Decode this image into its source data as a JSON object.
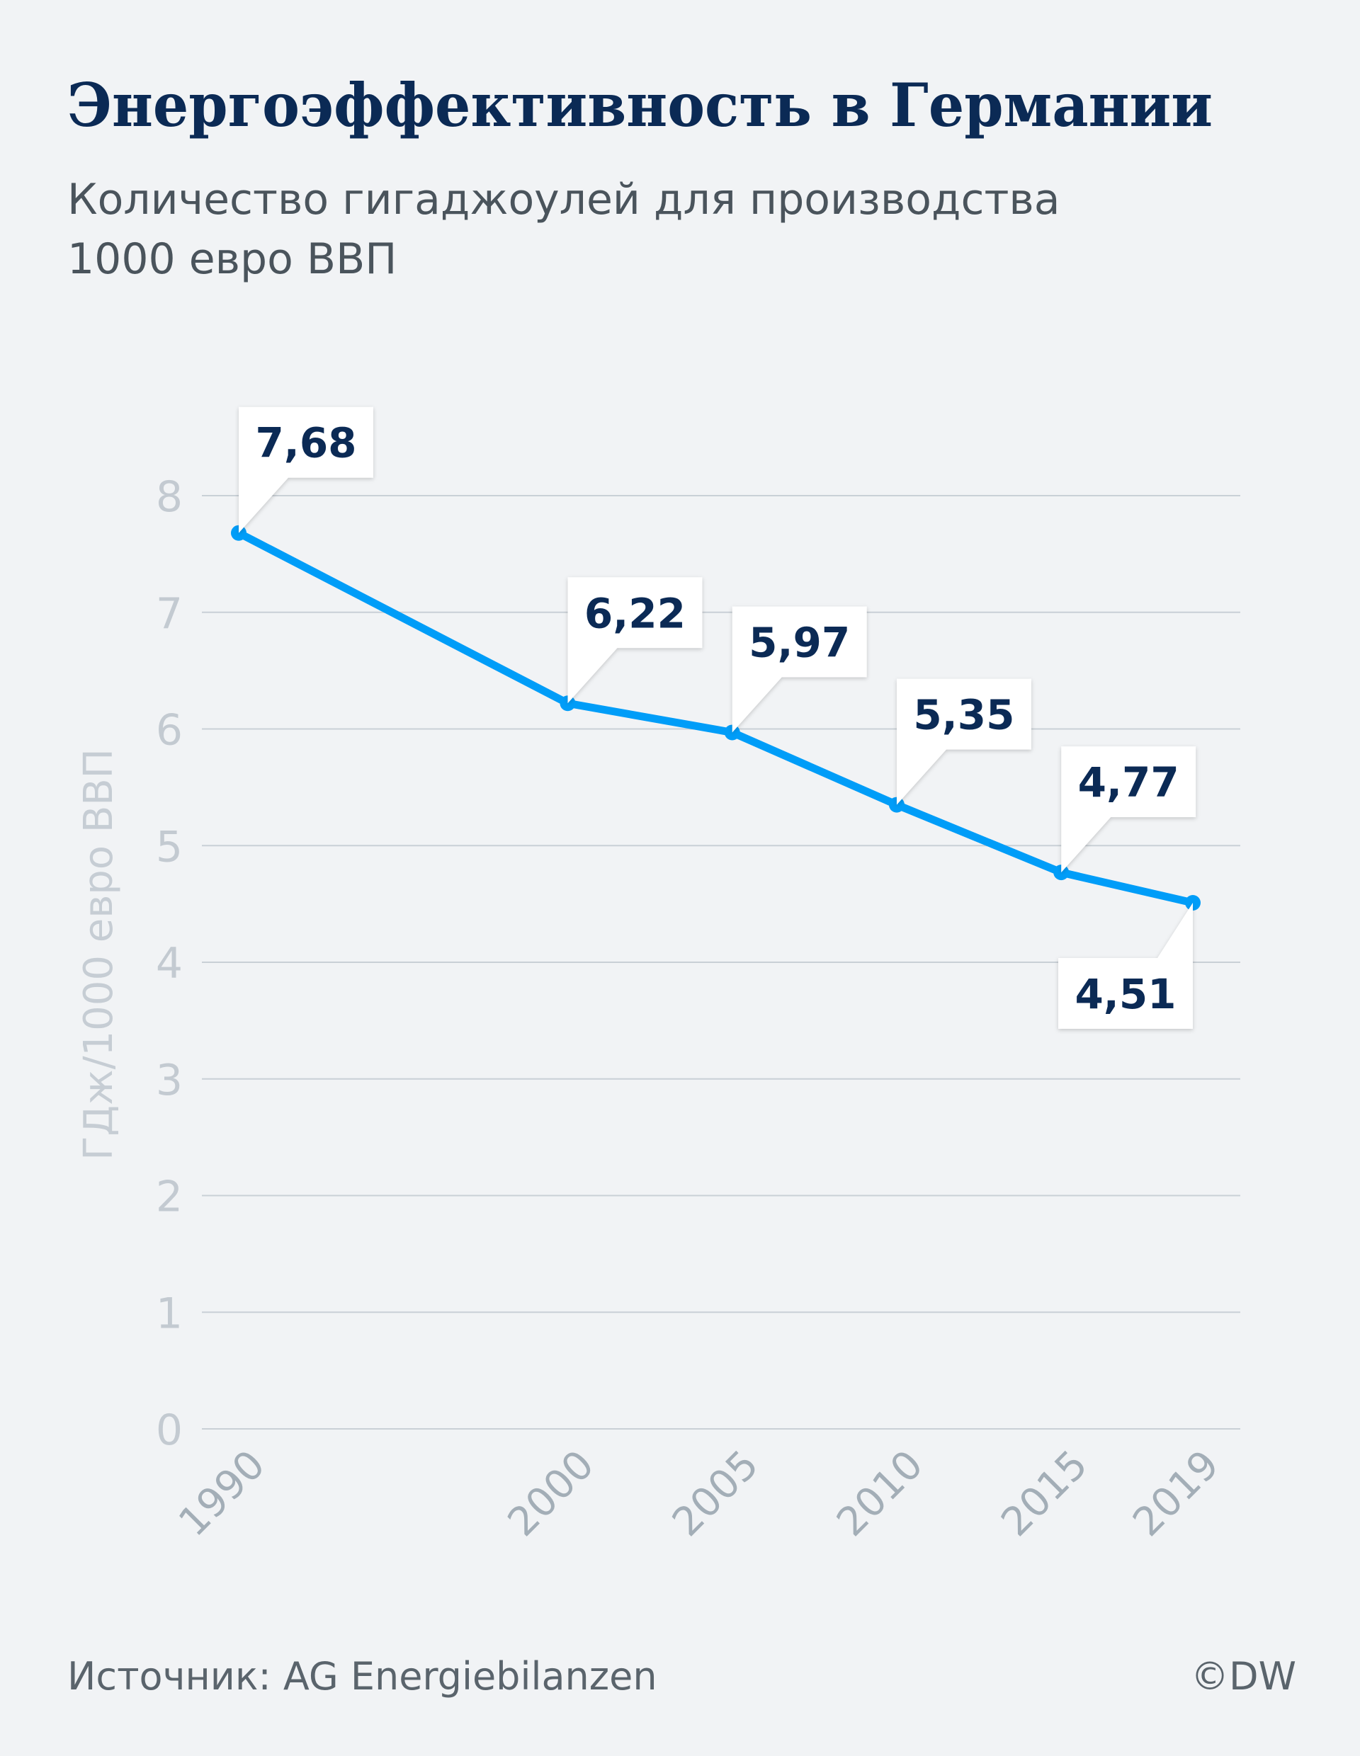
{
  "title": "Энергоэффективность в Германии",
  "subtitle_lines": [
    "Количество гигаджоулей для производства",
    "1000 евро ВВП"
  ],
  "source": "Источник: AG Energiebilanzen",
  "credit": "©DW",
  "colors": {
    "line": "#009df8",
    "background": "#f1f3f5",
    "label_text": "#0b2a55",
    "grid": "#c9d0d6"
  },
  "chart_data": {
    "type": "line",
    "title": "Энергоэффективность в Германии",
    "ylabel": "ГДж/1000 евро ВВП",
    "xlabel": "",
    "x": [
      1990,
      2000,
      2005,
      2010,
      2015,
      2019
    ],
    "x_tick_labels": [
      "1990",
      "2000",
      "2005",
      "2010",
      "2015",
      "2019"
    ],
    "values": [
      7.68,
      6.22,
      5.97,
      5.35,
      4.77,
      4.51
    ],
    "data_labels": [
      "7,68",
      "6,22",
      "5,97",
      "5,35",
      "4,77",
      "4,51"
    ],
    "ylim": [
      0,
      8
    ],
    "y_ticks": [
      0,
      1,
      2,
      3,
      4,
      5,
      6,
      7,
      8
    ],
    "grid": true,
    "legend": "none"
  }
}
